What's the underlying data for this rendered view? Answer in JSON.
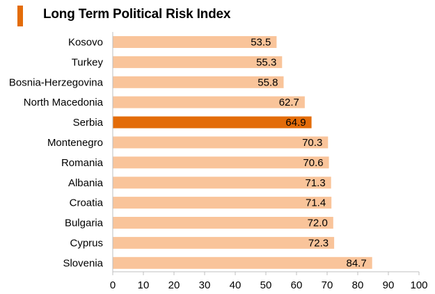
{
  "chart_data": {
    "type": "bar",
    "orientation": "horizontal",
    "title": "Long Term Political Risk Index",
    "categories": [
      "Kosovo",
      "Turkey",
      "Bosnia-Herzegovina",
      "North Macedonia",
      "Serbia",
      "Montenegro",
      "Romania",
      "Albania",
      "Croatia",
      "Bulgaria",
      "Cyprus",
      "Slovenia"
    ],
    "values": [
      53.5,
      55.3,
      55.8,
      62.7,
      64.9,
      70.3,
      70.6,
      71.3,
      71.4,
      72.0,
      72.3,
      84.7
    ],
    "value_labels": [
      "53.5",
      "55.3",
      "55.8",
      "62.7",
      "64.9",
      "70.3",
      "70.6",
      "71.3",
      "71.4",
      "72.0",
      "72.3",
      "84.7"
    ],
    "highlight": "Serbia",
    "xlim": [
      0,
      100
    ],
    "xticks": [
      "0",
      "10",
      "20",
      "30",
      "40",
      "50",
      "60",
      "70",
      "80",
      "90",
      "100"
    ],
    "xlabel": "",
    "ylabel": "",
    "grid": false
  },
  "colors": {
    "bar": "#f9c49a",
    "highlight": "#e36c09",
    "accent": "#e36c09",
    "axis": "#bfbfbf"
  }
}
